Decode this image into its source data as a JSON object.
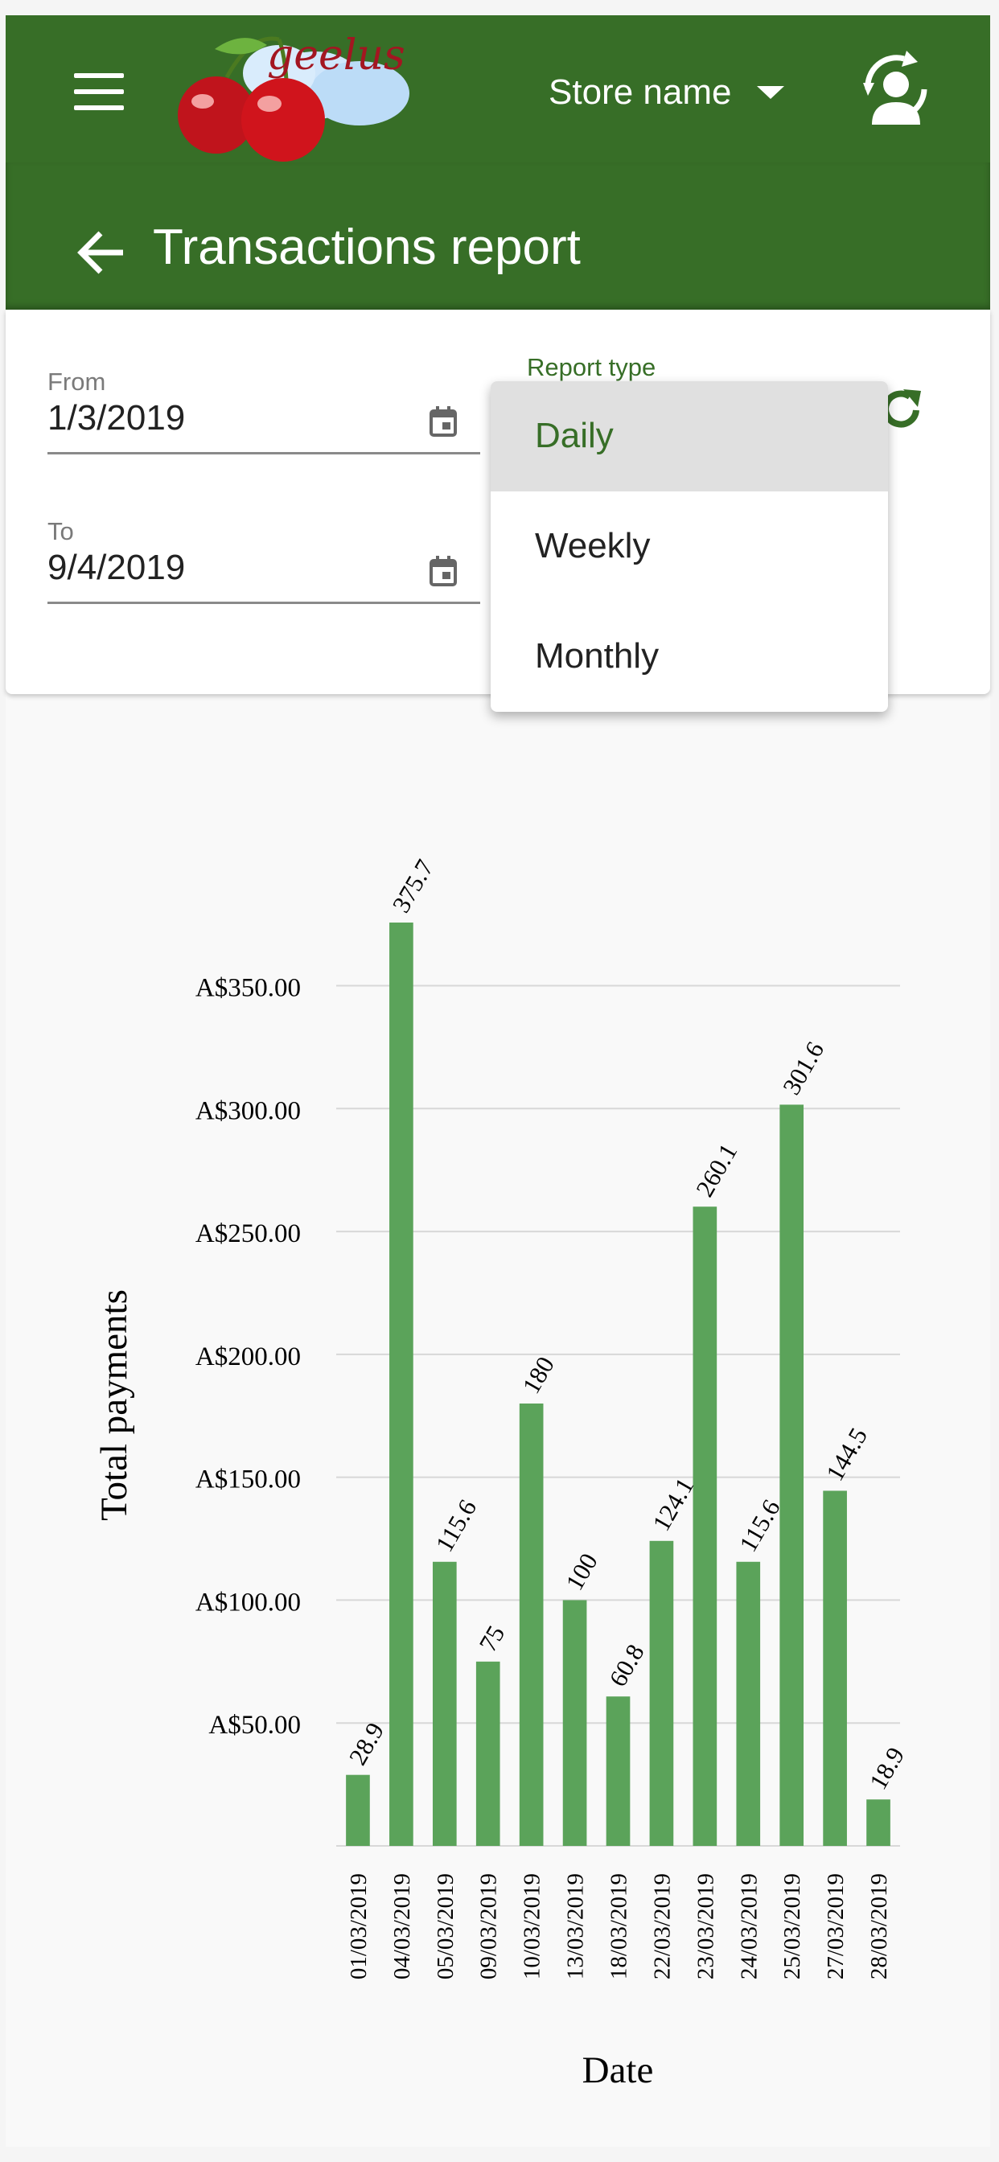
{
  "header": {
    "store_name": "Store name"
  },
  "page": {
    "title": "Transactions report"
  },
  "filters": {
    "from_label": "From",
    "from_value": "1/3/2019",
    "to_label": "To",
    "to_value": "9/4/2019",
    "report_type_label": "Report type"
  },
  "report_type_menu": {
    "options": [
      "Daily",
      "Weekly",
      "Monthly"
    ],
    "selected": "Daily"
  },
  "colors": {
    "brand": "#376e27",
    "bar": "#5ba35a"
  },
  "icons": [
    "menu-icon",
    "account-switch-icon",
    "back-arrow-icon",
    "calendar-icon",
    "refresh-icon"
  ],
  "chart_data": {
    "type": "bar",
    "categories": [
      "01/03/2019",
      "04/03/2019",
      "05/03/2019",
      "09/03/2019",
      "10/03/2019",
      "13/03/2019",
      "18/03/2019",
      "22/03/2019",
      "23/03/2019",
      "24/03/2019",
      "25/03/2019",
      "27/03/2019",
      "28/03/2019"
    ],
    "values": [
      28.9,
      375.7,
      115.6,
      75,
      180,
      100,
      60.8,
      124.1,
      260.1,
      115.6,
      301.6,
      144.5,
      18.9
    ],
    "data_labels": [
      "28.9",
      "375.7",
      "115.6",
      "75",
      "180",
      "100",
      "60.8",
      "124.1",
      "260.1",
      "115.6",
      "301.6",
      "144.5",
      "18.9"
    ],
    "yticks": [
      "A$50.00",
      "A$100.00",
      "A$150.00",
      "A$200.00",
      "A$250.00",
      "A$300.00",
      "A$350.00"
    ],
    "ytick_values": [
      50,
      100,
      150,
      200,
      250,
      300,
      350
    ],
    "xlabel": "Date",
    "ylabel": "Total payments",
    "ylim": [
      0,
      375.7
    ],
    "grid": true
  }
}
